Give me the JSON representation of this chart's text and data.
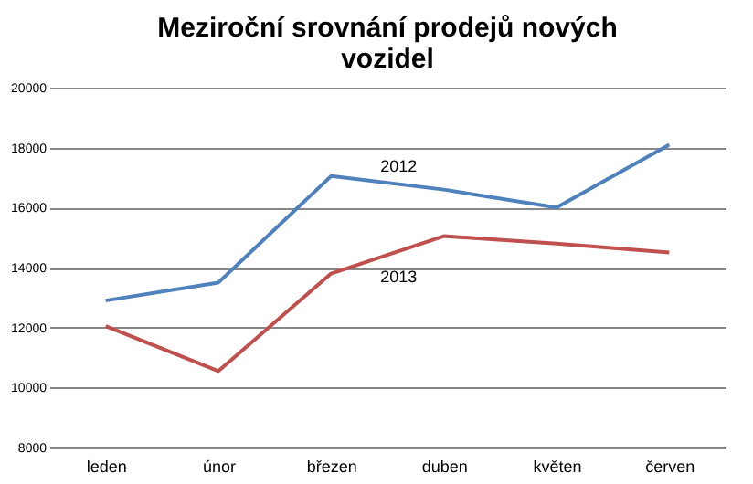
{
  "chart_data": {
    "type": "line",
    "title": "Meziroční srovnání prodejů nových vozidel",
    "categories": [
      "leden",
      "únor",
      "březen",
      "duben",
      "květen",
      "červen"
    ],
    "series": [
      {
        "name": "2012",
        "color": "#4f81bd",
        "values": [
          12900,
          13500,
          17050,
          16600,
          16000,
          18100
        ]
      },
      {
        "name": "2013",
        "color": "#c0504d",
        "values": [
          12050,
          10550,
          13800,
          15050,
          14800,
          14500
        ]
      }
    ],
    "ylim": [
      8000,
      20000
    ],
    "yticks": [
      8000,
      10000,
      12000,
      14000,
      16000,
      18000,
      20000
    ],
    "grid": "y",
    "legend": false,
    "marker": "none",
    "line_style": "solid"
  }
}
